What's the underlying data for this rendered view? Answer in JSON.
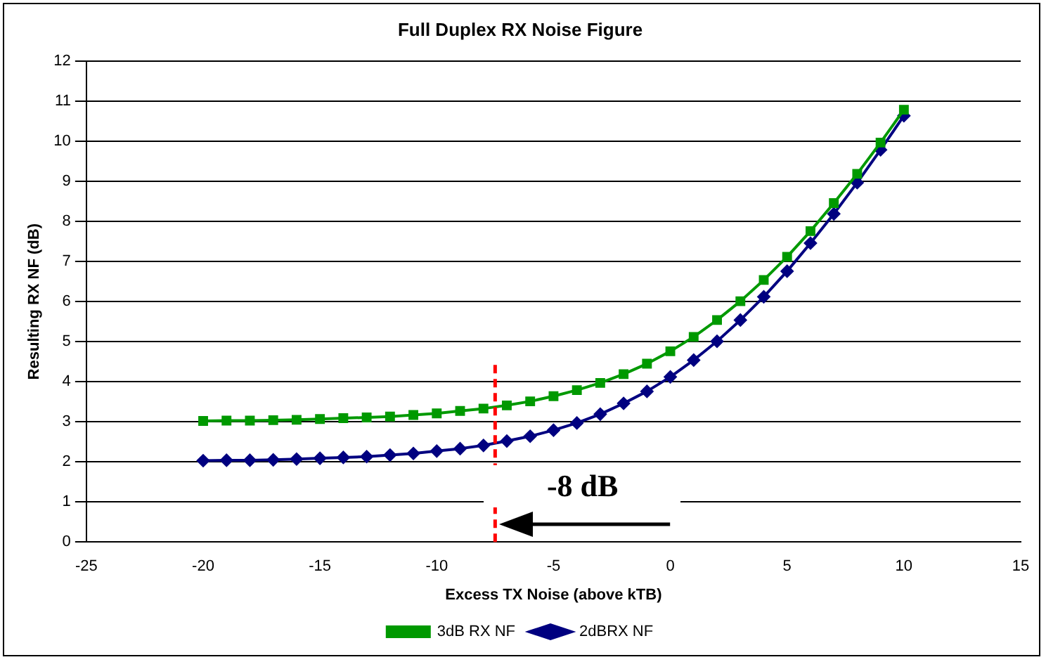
{
  "chart_data": {
    "type": "line",
    "title": "Full Duplex RX Noise Figure",
    "xlabel": "Excess TX Noise (above kTB)",
    "ylabel": "Resulting RX NF (dB)",
    "x": [
      -20,
      -19,
      -18,
      -17,
      -16,
      -15,
      -14,
      -13,
      -12,
      -11,
      -10,
      -9,
      -8,
      -7,
      -6,
      -5,
      -4,
      -3,
      -2,
      -1,
      0,
      1,
      2,
      3,
      4,
      5,
      6,
      7,
      8,
      9,
      10
    ],
    "series": [
      {
        "name": "3dB RX NF",
        "color": "#009900",
        "marker": "square",
        "values": [
          3.02,
          3.03,
          3.03,
          3.04,
          3.05,
          3.07,
          3.09,
          3.11,
          3.13,
          3.17,
          3.21,
          3.27,
          3.33,
          3.41,
          3.51,
          3.64,
          3.79,
          3.97,
          4.19,
          4.45,
          4.76,
          5.12,
          5.54,
          6.01,
          6.54,
          7.12,
          7.76,
          8.46,
          9.19,
          9.97,
          10.79
        ]
      },
      {
        "name": "2dBRX NF",
        "color": "#000080",
        "marker": "diamond",
        "values": [
          2.03,
          2.04,
          2.04,
          2.05,
          2.07,
          2.09,
          2.11,
          2.13,
          2.17,
          2.21,
          2.27,
          2.33,
          2.41,
          2.52,
          2.64,
          2.79,
          2.97,
          3.19,
          3.46,
          3.76,
          4.12,
          4.54,
          5.01,
          5.54,
          6.12,
          6.76,
          7.46,
          8.19,
          8.97,
          9.79,
          10.64
        ]
      }
    ],
    "xlim": [
      -25,
      15
    ],
    "xticks": [
      -25,
      -20,
      -15,
      -10,
      -5,
      0,
      5,
      10,
      15
    ],
    "ylim": [
      0,
      12
    ],
    "yticks": [
      0,
      1,
      2,
      3,
      4,
      5,
      6,
      7,
      8,
      9,
      10,
      11,
      12
    ],
    "grid": "y",
    "legend": "bottom",
    "line_style": "solid",
    "ref_lines": [
      {
        "axis": "x",
        "value": -7.5,
        "color": "#ff0000",
        "line_style": "dashed"
      }
    ],
    "annotations": [
      "-8 dB"
    ]
  }
}
